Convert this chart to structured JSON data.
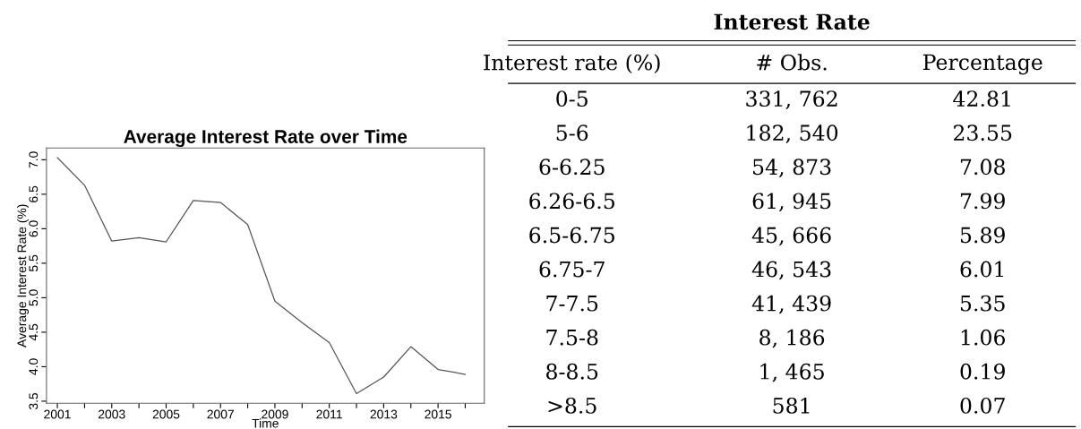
{
  "chart_data": [
    {
      "type": "line",
      "title": "Average Interest Rate over Time",
      "xlabel": "Time",
      "ylabel": "Average Interest Rate (%)",
      "x": [
        2001,
        2002,
        2003,
        2004,
        2005,
        2006,
        2007,
        2008,
        2009,
        2010,
        2011,
        2012,
        2013,
        2014,
        2015,
        2016
      ],
      "series": [
        {
          "color": "#555555",
          "values": [
            7.03,
            6.63,
            5.82,
            5.87,
            5.81,
            6.41,
            6.38,
            6.06,
            4.95,
            4.64,
            4.35,
            3.61,
            3.85,
            4.29,
            3.96,
            3.89
          ]
        }
      ],
      "xlim": [
        2000.6,
        2016.7
      ],
      "ylim": [
        3.47,
        7.17
      ],
      "xticks": [
        2001,
        {
          "value": 2002,
          "label": null
        },
        2003,
        {
          "value": 2004,
          "label": null
        },
        2005,
        {
          "value": 2006,
          "label": null
        },
        2007,
        {
          "value": 2008,
          "label": null
        },
        2009,
        {
          "value": 2010,
          "label": null
        },
        2011,
        {
          "value": 2012,
          "label": null
        },
        2013,
        {
          "value": 2014,
          "label": null
        },
        2015,
        {
          "value": 2016,
          "label": null
        }
      ],
      "yticks": [
        {
          "value": 3.5,
          "label": "3.5"
        },
        {
          "value": 4.0,
          "label": "4.0"
        },
        {
          "value": 4.5,
          "label": "4.5"
        },
        {
          "value": 5.0,
          "label": "5.0"
        },
        {
          "value": 5.5,
          "label": "5.5"
        },
        {
          "value": 6.0,
          "label": "6.0"
        },
        {
          "value": 6.5,
          "label": "6.5"
        },
        {
          "value": 7.0,
          "label": "7.0"
        }
      ],
      "grid": false,
      "legend": false,
      "marker": "none",
      "line_style": "solid"
    },
    {
      "type": "other",
      "title": "Interest Rate",
      "annotations": [
        "Interest rate (%)",
        "# Obs.",
        "Percentage",
        "0-5",
        "331, 762",
        "42.81",
        "5-6",
        "182, 540",
        "23.55",
        "6-6.25",
        "54, 873",
        "7.08",
        "6.26-6.5",
        "61, 945",
        "7.99",
        "6.5-6.75",
        "45, 666",
        "5.89",
        "6.75-7",
        "46, 543",
        "6.01",
        "7-7.5",
        "41, 439",
        "5.35",
        "7.5-8",
        "8, 186",
        "1.06",
        "8-8.5",
        "1, 465",
        "0.19",
        ">8.5",
        "581",
        "0.07"
      ]
    }
  ]
}
